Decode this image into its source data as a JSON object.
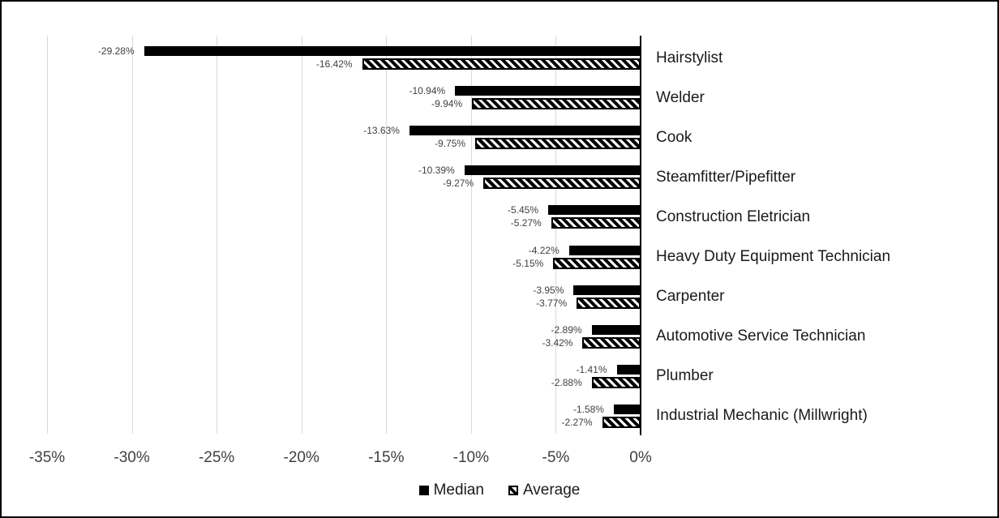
{
  "chart_data": {
    "type": "bar",
    "orientation": "horizontal",
    "title": "",
    "categories": [
      "Hairstylist",
      "Welder",
      "Cook",
      "Steamfitter/Pipefitter",
      "Construction Eletrician",
      "Heavy Duty Equipment Technician",
      "Carpenter",
      "Automotive Service Technician",
      "Plumber",
      "Industrial Mechanic (Millwright)"
    ],
    "series": [
      {
        "name": "Median",
        "pattern": "solid",
        "values": [
          -29.28,
          -10.94,
          -13.63,
          -10.39,
          -5.45,
          -4.22,
          -3.95,
          -2.89,
          -1.41,
          -1.58
        ],
        "labels": [
          "-29.28%",
          "-10.94%",
          "-13.63%",
          "-10.39%",
          "-5.45%",
          "-4.22%",
          "-3.95%",
          "-2.89%",
          "-1.41%",
          "-1.58%"
        ]
      },
      {
        "name": "Average",
        "pattern": "hatched",
        "values": [
          -16.42,
          -9.94,
          -9.75,
          -9.27,
          -5.27,
          -5.15,
          -3.77,
          -3.42,
          -2.88,
          -2.27
        ],
        "labels": [
          "-16.42%",
          "-9.94%",
          "-9.75%",
          "-9.27%",
          "-5.27%",
          "-5.15%",
          "-3.77%",
          "-3.42%",
          "-2.88%",
          "-2.27%"
        ]
      }
    ],
    "xlim": [
      -35,
      0
    ],
    "x_ticks": [
      "-35%",
      "-30%",
      "-25%",
      "-20%",
      "-15%",
      "-10%",
      "-5%",
      "0%"
    ],
    "grid": "vertical-gridlines-every-5",
    "legend_position": "bottom",
    "colors": {
      "bar": "#000000",
      "gridline": "#d9d9d9",
      "axis_line": "#000000",
      "value_label": "#404040",
      "tick_label": "#404040",
      "category_label": "#1a1a1a",
      "background": "#ffffff",
      "border": "#000000"
    }
  }
}
